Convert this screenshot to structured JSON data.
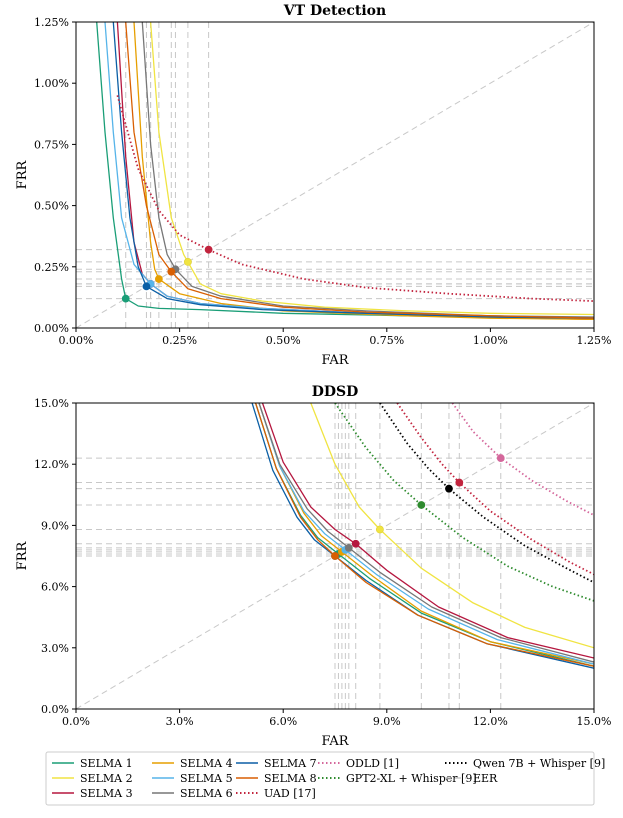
{
  "chart_data": [
    {
      "type": "line",
      "title": "VT Detection",
      "xlabel": "FAR",
      "ylabel": "FRR",
      "xlim": [
        0,
        1.25
      ],
      "ylim": [
        0,
        1.25
      ],
      "xticks": [
        "0.00%",
        "0.25%",
        "0.50%",
        "0.75%",
        "1.00%",
        "1.25%"
      ],
      "yticks": [
        "0.00%",
        "0.25%",
        "0.50%",
        "0.75%",
        "1.00%",
        "1.25%"
      ],
      "tick_values": [
        0,
        0.25,
        0.5,
        0.75,
        1.0,
        1.25
      ],
      "eer_diagonal": true,
      "series": [
        {
          "name": "SELMA 1",
          "color": "#1a9e77",
          "style": "solid",
          "eer": 0.12,
          "x": [
            0.05,
            0.07,
            0.09,
            0.11,
            0.12,
            0.15,
            0.2,
            0.3,
            0.5,
            0.8,
            1.0,
            1.25
          ],
          "y": [
            1.25,
            0.8,
            0.45,
            0.2,
            0.12,
            0.09,
            0.08,
            0.075,
            0.06,
            0.05,
            0.045,
            0.04
          ]
        },
        {
          "name": "SELMA 2",
          "color": "#f0e442",
          "style": "solid",
          "eer": 0.27,
          "x": [
            0.18,
            0.2,
            0.23,
            0.26,
            0.27,
            0.3,
            0.35,
            0.45,
            0.6,
            0.8,
            1.0,
            1.25
          ],
          "y": [
            1.25,
            0.8,
            0.45,
            0.3,
            0.27,
            0.18,
            0.14,
            0.11,
            0.085,
            0.07,
            0.06,
            0.055
          ]
        },
        {
          "name": "SELMA 3",
          "color": "#b5173f",
          "style": "solid",
          "eer": 0.18,
          "x": [
            0.1,
            0.12,
            0.14,
            0.16,
            0.18,
            0.22,
            0.3,
            0.45,
            0.7,
            0.9,
            1.1,
            1.25
          ],
          "y": [
            1.25,
            0.7,
            0.35,
            0.22,
            0.18,
            0.13,
            0.1,
            0.08,
            0.06,
            0.05,
            0.04,
            0.035
          ]
        },
        {
          "name": "SELMA 4",
          "color": "#e69f00",
          "style": "solid",
          "eer": 0.2,
          "x": [
            0.14,
            0.16,
            0.18,
            0.19,
            0.2,
            0.25,
            0.35,
            0.5,
            0.8,
            1.0,
            1.25
          ],
          "y": [
            1.25,
            0.7,
            0.35,
            0.24,
            0.2,
            0.14,
            0.1,
            0.07,
            0.05,
            0.04,
            0.035
          ]
        },
        {
          "name": "SELMA 5",
          "color": "#56b4e9",
          "style": "solid",
          "eer": 0.18,
          "x": [
            0.07,
            0.09,
            0.11,
            0.14,
            0.18,
            0.22,
            0.3,
            0.45,
            0.7,
            1.0,
            1.25
          ],
          "y": [
            1.25,
            0.8,
            0.45,
            0.26,
            0.18,
            0.13,
            0.1,
            0.08,
            0.06,
            0.05,
            0.04
          ]
        },
        {
          "name": "SELMA 6",
          "color": "#777777",
          "style": "solid",
          "eer": 0.24,
          "x": [
            0.16,
            0.18,
            0.2,
            0.22,
            0.24,
            0.28,
            0.35,
            0.5,
            0.7,
            1.0,
            1.25
          ],
          "y": [
            1.25,
            0.75,
            0.45,
            0.3,
            0.24,
            0.17,
            0.13,
            0.09,
            0.07,
            0.05,
            0.045
          ]
        },
        {
          "name": "SELMA 7",
          "color": "#0b5fa5",
          "style": "solid",
          "eer": 0.17,
          "x": [
            0.09,
            0.11,
            0.13,
            0.15,
            0.17,
            0.22,
            0.3,
            0.45,
            0.7,
            1.0,
            1.25
          ],
          "y": [
            1.25,
            0.8,
            0.45,
            0.25,
            0.17,
            0.12,
            0.095,
            0.075,
            0.06,
            0.045,
            0.04
          ]
        },
        {
          "name": "SELMA 8",
          "color": "#d95f02",
          "style": "solid",
          "eer": 0.23,
          "x": [
            0.12,
            0.14,
            0.17,
            0.2,
            0.23,
            0.27,
            0.35,
            0.5,
            0.7,
            1.0,
            1.25
          ],
          "y": [
            1.25,
            0.8,
            0.5,
            0.3,
            0.23,
            0.16,
            0.12,
            0.085,
            0.065,
            0.05,
            0.04
          ]
        },
        {
          "name": "UAD [17]",
          "color": "#c2243e",
          "style": "dotted",
          "eer": 0.32,
          "x": [
            0.1,
            0.15,
            0.2,
            0.25,
            0.32,
            0.4,
            0.55,
            0.7,
            0.9,
            1.1,
            1.25
          ],
          "y": [
            0.95,
            0.65,
            0.48,
            0.38,
            0.32,
            0.26,
            0.2,
            0.165,
            0.14,
            0.12,
            0.11
          ]
        }
      ]
    },
    {
      "type": "line",
      "title": "DDSD",
      "xlabel": "FAR",
      "ylabel": "FRR",
      "xlim": [
        0,
        15
      ],
      "ylim": [
        0,
        15
      ],
      "xticks": [
        "0.0%",
        "3.0%",
        "6.0%",
        "9.0%",
        "12.0%",
        "15.0%"
      ],
      "yticks": [
        "0.0%",
        "3.0%",
        "6.0%",
        "9.0%",
        "12.0%",
        "15.0%"
      ],
      "tick_values": [
        0,
        3,
        6,
        9,
        12,
        15
      ],
      "eer_diagonal": true,
      "series": [
        {
          "name": "SELMA 1",
          "color": "#1a9e77",
          "style": "solid",
          "eer": 7.6,
          "x": [
            5.2,
            5.8,
            6.5,
            7.0,
            7.6,
            8.5,
            10.0,
            12.0,
            15.0
          ],
          "y": [
            15.0,
            11.8,
            9.5,
            8.4,
            7.6,
            6.4,
            4.7,
            3.3,
            2.1
          ]
        },
        {
          "name": "SELMA 2",
          "color": "#f0e442",
          "style": "solid",
          "eer": 8.8,
          "x": [
            6.8,
            7.5,
            8.2,
            8.8,
            10.0,
            11.5,
            13.0,
            15.0
          ],
          "y": [
            15.0,
            12.0,
            9.9,
            8.8,
            6.9,
            5.2,
            4.0,
            3.0
          ]
        },
        {
          "name": "SELMA 3",
          "color": "#b5173f",
          "style": "solid",
          "eer": 8.1,
          "x": [
            5.4,
            6.0,
            6.8,
            7.5,
            8.1,
            9.0,
            10.5,
            12.5,
            15.0
          ],
          "y": [
            15.0,
            12.1,
            9.9,
            8.8,
            8.1,
            6.8,
            5.0,
            3.5,
            2.5
          ]
        },
        {
          "name": "SELMA 4",
          "color": "#e69f00",
          "style": "solid",
          "eer": 7.7,
          "x": [
            5.3,
            5.9,
            6.6,
            7.1,
            7.7,
            8.6,
            10.0,
            12.0,
            15.0
          ],
          "y": [
            15.0,
            11.9,
            9.6,
            8.5,
            7.7,
            6.5,
            4.8,
            3.3,
            2.2
          ]
        },
        {
          "name": "SELMA 5",
          "color": "#56b4e9",
          "style": "solid",
          "eer": 7.8,
          "x": [
            5.3,
            5.9,
            6.6,
            7.2,
            7.8,
            8.7,
            10.2,
            12.2,
            15.0
          ],
          "y": [
            15.0,
            11.9,
            9.7,
            8.6,
            7.8,
            6.6,
            4.9,
            3.4,
            2.2
          ]
        },
        {
          "name": "SELMA 6",
          "color": "#777777",
          "style": "solid",
          "eer": 7.9,
          "x": [
            5.3,
            5.9,
            6.7,
            7.3,
            7.9,
            8.8,
            10.3,
            12.3,
            15.0
          ],
          "y": [
            15.0,
            12.0,
            9.8,
            8.7,
            7.9,
            6.7,
            5.0,
            3.5,
            2.3
          ]
        },
        {
          "name": "SELMA 7",
          "color": "#0b5fa5",
          "style": "solid",
          "eer": 7.5,
          "x": [
            5.1,
            5.7,
            6.4,
            6.9,
            7.5,
            8.4,
            9.9,
            11.9,
            15.0
          ],
          "y": [
            15.0,
            11.7,
            9.4,
            8.3,
            7.5,
            6.3,
            4.6,
            3.2,
            2.0
          ]
        },
        {
          "name": "SELMA 8",
          "color": "#d95f02",
          "style": "solid",
          "eer": 7.5,
          "x": [
            5.2,
            5.8,
            6.5,
            7.0,
            7.5,
            8.4,
            9.9,
            11.9,
            15.0
          ],
          "y": [
            15.0,
            11.8,
            9.4,
            8.3,
            7.5,
            6.2,
            4.6,
            3.2,
            2.1
          ]
        },
        {
          "name": "ODLD [1]",
          "color": "#d4679b",
          "style": "dotted",
          "eer": 12.3,
          "x": [
            10.9,
            11.5,
            12.3,
            13.2,
            14.2,
            15.0
          ],
          "y": [
            15.0,
            13.6,
            12.3,
            11.2,
            10.2,
            9.5
          ]
        },
        {
          "name": "GPT2-XL + Whisper [9]",
          "color": "#2e8b2e",
          "style": "dotted",
          "eer": 10.0,
          "x": [
            7.5,
            8.4,
            9.2,
            10.0,
            11.2,
            12.5,
            13.8,
            15.0
          ],
          "y": [
            15.0,
            12.8,
            11.2,
            10.0,
            8.4,
            7.0,
            6.0,
            5.3
          ]
        },
        {
          "name": "Qwen 7B + Whisper [9]",
          "color": "#000000",
          "style": "dotted",
          "eer": 10.8,
          "x": [
            8.8,
            9.6,
            10.2,
            10.8,
            11.8,
            13.0,
            14.2,
            15.0
          ],
          "y": [
            15.0,
            13.0,
            11.8,
            10.8,
            9.4,
            8.0,
            6.9,
            6.2
          ]
        },
        {
          "name": "UAD [17]",
          "color": "#c2243e",
          "style": "dotted",
          "eer": 11.1,
          "x": [
            9.3,
            10.0,
            10.6,
            11.1,
            12.0,
            13.2,
            14.3,
            15.0
          ],
          "y": [
            15.0,
            13.3,
            12.0,
            11.1,
            9.7,
            8.3,
            7.2,
            6.6
          ]
        }
      ]
    }
  ],
  "legend": {
    "items": [
      {
        "label": "SELMA 1",
        "color": "#1a9e77",
        "style": "solid"
      },
      {
        "label": "SELMA 2",
        "color": "#f0e442",
        "style": "solid"
      },
      {
        "label": "SELMA 3",
        "color": "#b5173f",
        "style": "solid"
      },
      {
        "label": "SELMA 4",
        "color": "#e69f00",
        "style": "solid"
      },
      {
        "label": "SELMA 5",
        "color": "#56b4e9",
        "style": "solid"
      },
      {
        "label": "SELMA 6",
        "color": "#777777",
        "style": "solid"
      },
      {
        "label": "SELMA 7",
        "color": "#0b5fa5",
        "style": "solid"
      },
      {
        "label": "SELMA 8",
        "color": "#d95f02",
        "style": "solid"
      },
      {
        "label": "UAD [17]",
        "color": "#c2243e",
        "style": "dotted"
      },
      {
        "label": "ODLD [1]",
        "color": "#d4679b",
        "style": "dotted"
      },
      {
        "label": "GPT2-XL + Whisper [9]",
        "color": "#2e8b2e",
        "style": "dotted"
      },
      {
        "label": "Qwen 7B + Whisper [9]",
        "color": "#000000",
        "style": "dotted"
      },
      {
        "label": "EER",
        "color": "#c8c8c8",
        "style": "dashed"
      }
    ]
  }
}
